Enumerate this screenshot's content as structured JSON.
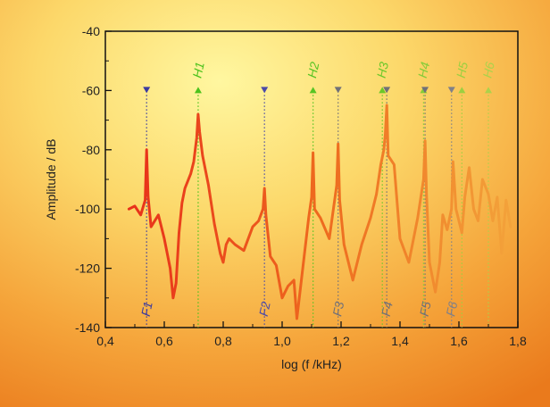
{
  "chart_data": {
    "type": "line",
    "title": "",
    "xlabel": "log (f /kHz)",
    "ylabel": "Amplitude / dB",
    "xlim": [
      0.4,
      1.8
    ],
    "ylim": [
      -140,
      -40
    ],
    "grid": false,
    "legend": "none",
    "x_ticks": [
      {
        "value": 0.4,
        "label": "0,4"
      },
      {
        "value": 0.6,
        "label": "0,6"
      },
      {
        "value": 0.8,
        "label": "0,8"
      },
      {
        "value": 1.0,
        "label": "1,0"
      },
      {
        "value": 1.2,
        "label": "1,2"
      },
      {
        "value": 1.4,
        "label": "1,4"
      },
      {
        "value": 1.6,
        "label": "1,6"
      },
      {
        "value": 1.8,
        "label": "1,8"
      }
    ],
    "y_ticks": [
      {
        "value": -40,
        "label": "-40"
      },
      {
        "value": -60,
        "label": "-60"
      },
      {
        "value": -80,
        "label": "-80"
      },
      {
        "value": -100,
        "label": "-100"
      },
      {
        "value": -120,
        "label": "-120"
      },
      {
        "value": -140,
        "label": "-140"
      }
    ],
    "series": [
      {
        "x": [
          0.48,
          0.5,
          0.52,
          0.535,
          0.54,
          0.545,
          0.555,
          0.58,
          0.6,
          0.62,
          0.63,
          0.64,
          0.65,
          0.66,
          0.67,
          0.69,
          0.7,
          0.71,
          0.715,
          0.72,
          0.73,
          0.75,
          0.77,
          0.79,
          0.8,
          0.81,
          0.82,
          0.84,
          0.87,
          0.9,
          0.92,
          0.935,
          0.94,
          0.945,
          0.96,
          0.98,
          1.0,
          1.02,
          1.04,
          1.05,
          1.07,
          1.09,
          1.1,
          1.105,
          1.11,
          1.13,
          1.16,
          1.185,
          1.19,
          1.195,
          1.21,
          1.24,
          1.27,
          1.3,
          1.32,
          1.335,
          1.345,
          1.35,
          1.355,
          1.36,
          1.38,
          1.4,
          1.43,
          1.46,
          1.48,
          1.485,
          1.49,
          1.5,
          1.52,
          1.535,
          1.545,
          1.56,
          1.575,
          1.58,
          1.59,
          1.61,
          1.62,
          1.635,
          1.65,
          1.665,
          1.68,
          1.7,
          1.715,
          1.73,
          1.745,
          1.76,
          1.775
        ],
        "y": [
          -100,
          -99,
          -102,
          -97,
          -80,
          -96,
          -106,
          -102,
          -110,
          -120,
          -130,
          -125,
          -108,
          -98,
          -93,
          -88,
          -84,
          -76,
          -68,
          -74,
          -82,
          -92,
          -105,
          -115,
          -118,
          -112,
          -110,
          -112,
          -114,
          -106,
          -104,
          -100,
          -93,
          -102,
          -116,
          -119,
          -130,
          -126,
          -124,
          -137,
          -120,
          -103,
          -96,
          -81,
          -100,
          -103,
          -110,
          -92,
          -78,
          -97,
          -112,
          -124,
          -112,
          -103,
          -95,
          -85,
          -80,
          -75,
          -65,
          -82,
          -85,
          -110,
          -118,
          -103,
          -90,
          -77,
          -95,
          -118,
          -128,
          -118,
          -102,
          -107,
          -100,
          -84,
          -100,
          -108,
          -96,
          -86,
          -100,
          -104,
          -90,
          -95,
          -104,
          -96,
          -115,
          -97,
          -106
        ],
        "color": "#e64a14"
      }
    ],
    "markers": [
      {
        "label": "F1",
        "x": 0.54,
        "kind": "F",
        "color": "#3a3aa0"
      },
      {
        "label": "H1",
        "x": 0.715,
        "kind": "H",
        "color": "#4cc21c"
      },
      {
        "label": "F2",
        "x": 0.94,
        "kind": "F",
        "color": "#4a4aa8"
      },
      {
        "label": "H2",
        "x": 1.105,
        "kind": "H",
        "color": "#58c424"
      },
      {
        "label": "F3",
        "x": 1.19,
        "kind": "F",
        "color": "#707078"
      },
      {
        "label": "H3",
        "x": 1.34,
        "kind": "H",
        "color": "#6cc82a"
      },
      {
        "label": "F4",
        "x": 1.355,
        "kind": "F",
        "color": "#707078"
      },
      {
        "label": "H4",
        "x": 1.48,
        "kind": "H",
        "color": "#84cc38"
      },
      {
        "label": "F5",
        "x": 1.485,
        "kind": "F",
        "color": "#707078"
      },
      {
        "label": "F6",
        "x": 1.575,
        "kind": "F",
        "color": "#808088"
      },
      {
        "label": "H5",
        "x": 1.61,
        "kind": "H",
        "color": "#9cd040"
      },
      {
        "label": "H6",
        "x": 1.7,
        "kind": "H",
        "color": "#acd24a"
      }
    ],
    "marker_level": -60
  }
}
